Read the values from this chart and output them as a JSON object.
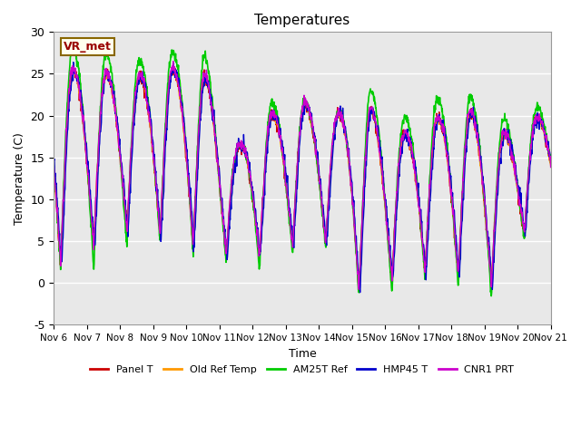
{
  "title": "Temperatures",
  "xlabel": "Time",
  "ylabel": "Temperature (C)",
  "ylim": [
    -5,
    30
  ],
  "yticks": [
    -5,
    0,
    5,
    10,
    15,
    20,
    25,
    30
  ],
  "xtick_labels": [
    "Nov 6",
    "Nov 7",
    "Nov 8",
    "Nov 9",
    "Nov 10",
    "Nov 11",
    "Nov 12",
    "Nov 13",
    "Nov 14",
    "Nov 15",
    "Nov 16",
    "Nov 17",
    "Nov 18",
    "Nov 19",
    "Nov 20",
    "Nov 21"
  ],
  "series_names": [
    "Panel T",
    "Old Ref Temp",
    "AM25T Ref",
    "HMP45 T",
    "CNR1 PRT"
  ],
  "series_colors": [
    "#cc0000",
    "#ff9900",
    "#00cc00",
    "#0000cc",
    "#cc00cc"
  ],
  "station_label": "VR_met",
  "station_label_color": "#990000",
  "background_color": "#e8e8e8",
  "plot_bg_color": "#e8e8e8",
  "grid_color": "white",
  "line_width": 1.0,
  "n_days": 15,
  "pts_per_day": 96
}
